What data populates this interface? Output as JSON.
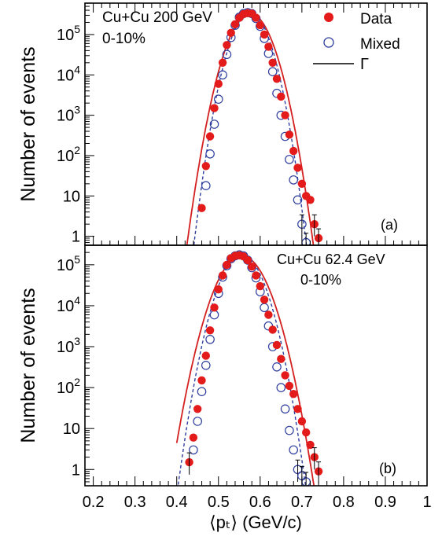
{
  "chart_data": [
    {
      "type": "scatter",
      "id": "a",
      "panel_label": "(a)",
      "system": "Cu+Cu 200 GeV",
      "centrality": "0-10%",
      "ylabel": "Number of events",
      "y_scale": "log",
      "ylim": [
        0.6,
        600000
      ],
      "y_ticks": [
        1,
        10,
        100,
        1000,
        10000,
        100000
      ],
      "y_tick_labels": [
        "1",
        "10",
        "10^2",
        "10^3",
        "10^4",
        "10^5"
      ],
      "legend": {
        "position": "top-right",
        "entries": [
          "Data",
          "Mixed",
          "Γ"
        ]
      },
      "series": [
        {
          "name": "Data",
          "marker": "filled-circle",
          "color": "#e31b1b",
          "x": [
            0.46,
            0.47,
            0.48,
            0.49,
            0.5,
            0.51,
            0.52,
            0.53,
            0.54,
            0.55,
            0.56,
            0.57,
            0.58,
            0.59,
            0.6,
            0.61,
            0.62,
            0.63,
            0.64,
            0.65,
            0.66,
            0.67,
            0.68,
            0.69,
            0.7,
            0.71,
            0.72,
            0.73,
            0.74
          ],
          "y": [
            5,
            55,
            300,
            1500,
            6000,
            20000,
            55000,
            110000,
            180000,
            260000,
            320000,
            340000,
            330000,
            260000,
            170000,
            100000,
            50000,
            20000,
            8000,
            2900,
            1000,
            330,
            130,
            50,
            20,
            10,
            8,
            2,
            0.9
          ]
        },
        {
          "name": "Mixed",
          "marker": "open-circle",
          "color": "#2f3e9e",
          "x": [
            0.47,
            0.48,
            0.49,
            0.5,
            0.51,
            0.52,
            0.53,
            0.54,
            0.55,
            0.56,
            0.57,
            0.58,
            0.59,
            0.6,
            0.61,
            0.62,
            0.63,
            0.64,
            0.65,
            0.66,
            0.67,
            0.68,
            0.69,
            0.7,
            0.71
          ],
          "y": [
            18,
            110,
            600,
            2500,
            10000,
            32000,
            85000,
            170000,
            270000,
            330000,
            350000,
            330000,
            250000,
            160000,
            80000,
            34000,
            12000,
            3500,
            1000,
            300,
            80,
            25,
            8,
            2,
            0.7
          ]
        }
      ],
      "fits": [
        {
          "name": "Γ",
          "style": "solid",
          "color": "#d42020",
          "mean": 0.576,
          "sigma": 0.0295,
          "peak": 330000
        },
        {
          "name": "Mixed fit",
          "style": "dashed",
          "color": "#2f3e9e",
          "mean": 0.576,
          "sigma": 0.0262,
          "peak": 345000
        }
      ]
    },
    {
      "type": "scatter",
      "id": "b",
      "panel_label": "(b)",
      "system": "Cu+Cu 62.4 GeV",
      "centrality": "0-10%",
      "xlabel": "⟨pₜ⟩ (GeV/c)",
      "ylabel": "Number of events",
      "y_scale": "log",
      "ylim": [
        0.4,
        300000
      ],
      "xlim": [
        0.18,
        1.0
      ],
      "x_ticks": [
        0.2,
        0.3,
        0.4,
        0.5,
        0.6,
        0.7,
        0.8,
        0.9,
        1.0
      ],
      "x_tick_labels": [
        "0.2",
        "0.3",
        "0.4",
        "0.5",
        "0.6",
        "0.7",
        "0.8",
        "0.9",
        "1"
      ],
      "y_ticks": [
        1,
        10,
        100,
        1000,
        10000,
        100000
      ],
      "y_tick_labels": [
        "1",
        "10",
        "10^2",
        "10^3",
        "10^4",
        "10^5"
      ],
      "series": [
        {
          "name": "Data",
          "marker": "filled-circle",
          "color": "#e31b1b",
          "x": [
            0.43,
            0.44,
            0.45,
            0.46,
            0.47,
            0.48,
            0.49,
            0.5,
            0.51,
            0.52,
            0.53,
            0.54,
            0.55,
            0.56,
            0.57,
            0.58,
            0.59,
            0.6,
            0.61,
            0.62,
            0.63,
            0.64,
            0.65,
            0.66,
            0.67,
            0.68,
            0.69,
            0.7,
            0.71,
            0.72,
            0.73,
            0.74
          ],
          "y": [
            1.5,
            6,
            30,
            150,
            600,
            2500,
            9000,
            25000,
            55000,
            100000,
            145000,
            165000,
            170000,
            160000,
            130000,
            90000,
            55000,
            30000,
            14000,
            6000,
            2600,
            1100,
            500,
            200,
            110,
            70,
            30,
            15,
            8,
            4,
            2,
            0.9
          ]
        },
        {
          "name": "Mixed",
          "marker": "open-circle",
          "color": "#2f3e9e",
          "x": [
            0.44,
            0.45,
            0.46,
            0.47,
            0.48,
            0.49,
            0.5,
            0.51,
            0.52,
            0.53,
            0.54,
            0.55,
            0.56,
            0.57,
            0.58,
            0.59,
            0.6,
            0.61,
            0.62,
            0.63,
            0.64,
            0.65,
            0.66,
            0.67,
            0.68,
            0.69,
            0.7,
            0.71
          ],
          "y": [
            3,
            15,
            80,
            350,
            1500,
            6000,
            20000,
            50000,
            95000,
            140000,
            165000,
            175000,
            165000,
            130000,
            85000,
            48000,
            22000,
            9000,
            3200,
            1000,
            320,
            100,
            30,
            9,
            3,
            1.0,
            0.7,
            0.5
          ]
        }
      ],
      "fits": [
        {
          "name": "Γ",
          "style": "solid",
          "color": "#d42020",
          "mean": 0.556,
          "sigma": 0.034,
          "peak": 165000
        },
        {
          "name": "Mixed fit",
          "style": "dashed",
          "color": "#2f3e9e",
          "mean": 0.556,
          "sigma": 0.03,
          "peak": 172000
        }
      ]
    }
  ]
}
